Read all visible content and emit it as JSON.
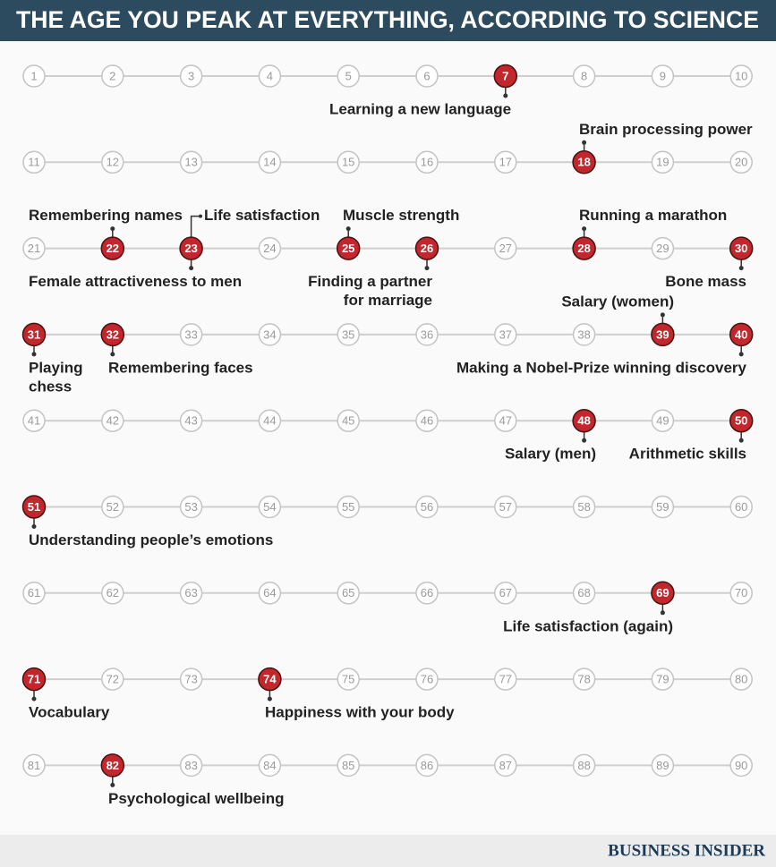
{
  "title": "THE AGE YOU PEAK AT EVERYTHING, ACCORDING TO SCIENCE",
  "ages": [
    1,
    2,
    3,
    4,
    5,
    6,
    7,
    8,
    9,
    10,
    11,
    12,
    13,
    14,
    15,
    16,
    17,
    18,
    19,
    20,
    21,
    22,
    23,
    24,
    25,
    26,
    27,
    28,
    29,
    30,
    31,
    32,
    33,
    34,
    35,
    36,
    37,
    38,
    39,
    40,
    41,
    42,
    43,
    44,
    45,
    46,
    47,
    48,
    49,
    50,
    51,
    52,
    53,
    54,
    55,
    56,
    57,
    58,
    59,
    60,
    61,
    62,
    63,
    64,
    65,
    66,
    67,
    68,
    69,
    70,
    71,
    72,
    73,
    74,
    75,
    76,
    77,
    78,
    79,
    80,
    81,
    82,
    83,
    84,
    85,
    86,
    87,
    88,
    89,
    90
  ],
  "peaks": [
    {
      "age": 7,
      "label": [
        "Learning a new language"
      ]
    },
    {
      "age": 18,
      "label": [
        "Brain processing power"
      ]
    },
    {
      "age": 22,
      "label": [
        "Remembering names"
      ]
    },
    {
      "age": 23,
      "label": [
        "Life satisfaction"
      ]
    },
    {
      "age": 25,
      "label": [
        "Muscle strength"
      ]
    },
    {
      "age": 28,
      "label": [
        "Running a marathon"
      ]
    },
    {
      "age": 23,
      "label": [
        "Female attractiveness to men"
      ]
    },
    {
      "age": 26,
      "label": [
        "Finding a partner",
        "for marriage"
      ]
    },
    {
      "age": 30,
      "label": [
        "Bone mass"
      ]
    },
    {
      "age": 39,
      "label": [
        "Salary (women)"
      ]
    },
    {
      "age": 31,
      "label": [
        "Playing",
        "chess"
      ]
    },
    {
      "age": 32,
      "label": [
        "Remembering faces"
      ]
    },
    {
      "age": 40,
      "label": [
        "Making a Nobel-Prize winning discovery"
      ]
    },
    {
      "age": 48,
      "label": [
        "Salary (men)"
      ]
    },
    {
      "age": 50,
      "label": [
        "Arithmetic skills"
      ]
    },
    {
      "age": 51,
      "label": [
        "Understanding people’s emotions"
      ]
    },
    {
      "age": 69,
      "label": [
        "Life satisfaction (again)"
      ]
    },
    {
      "age": 71,
      "label": [
        "Vocabulary"
      ]
    },
    {
      "age": 74,
      "label": [
        "Happiness with your body"
      ]
    },
    {
      "age": 82,
      "label": [
        "Psychological wellbeing"
      ]
    }
  ],
  "source": "BUSINESS INSIDER"
}
